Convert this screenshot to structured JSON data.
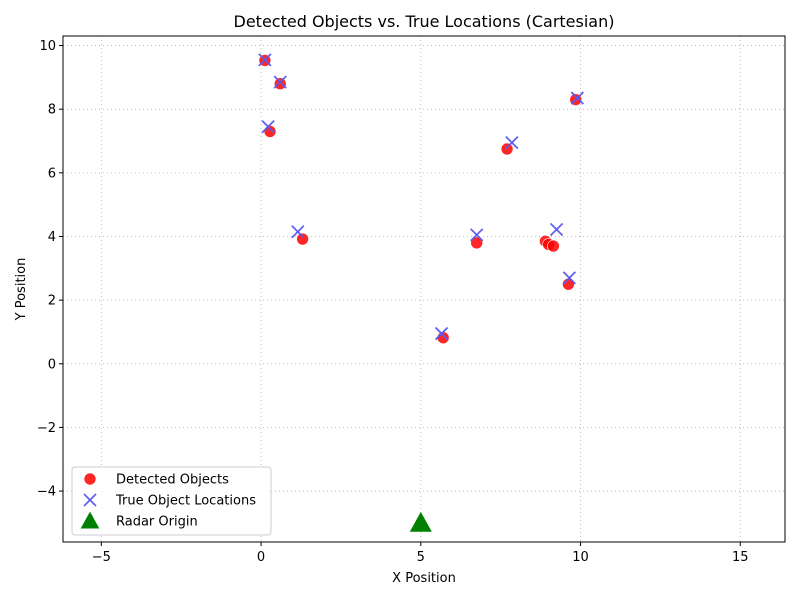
{
  "chart_data": {
    "type": "scatter",
    "title": "Detected Objects vs. True Locations (Cartesian)",
    "xlabel": "X Position",
    "ylabel": "Y Position",
    "xlim": [
      -6.2,
      16.4
    ],
    "ylim": [
      -5.6,
      10.3
    ],
    "xticks": [
      -5,
      0,
      5,
      10,
      15
    ],
    "yticks": [
      -4,
      -2,
      0,
      2,
      4,
      6,
      8,
      10
    ],
    "grid": true,
    "legend_position": "lower-left",
    "series": [
      {
        "name": "Detected Objects",
        "marker": "circle",
        "color": "#ff0000",
        "points": [
          {
            "x": 0.12,
            "y": 9.53
          },
          {
            "x": 0.6,
            "y": 8.8
          },
          {
            "x": 0.28,
            "y": 7.3
          },
          {
            "x": 1.3,
            "y": 3.92
          },
          {
            "x": 5.7,
            "y": 0.82
          },
          {
            "x": 6.75,
            "y": 3.8
          },
          {
            "x": 7.7,
            "y": 6.75
          },
          {
            "x": 8.9,
            "y": 3.85
          },
          {
            "x": 9.0,
            "y": 3.75
          },
          {
            "x": 9.15,
            "y": 3.7
          },
          {
            "x": 9.62,
            "y": 2.5
          },
          {
            "x": 9.85,
            "y": 8.3
          }
        ]
      },
      {
        "name": "True Object Locations",
        "marker": "x",
        "color": "#5a5aee",
        "points": [
          {
            "x": 0.12,
            "y": 9.55
          },
          {
            "x": 0.6,
            "y": 8.85
          },
          {
            "x": 0.22,
            "y": 7.45
          },
          {
            "x": 1.15,
            "y": 4.15
          },
          {
            "x": 5.65,
            "y": 0.95
          },
          {
            "x": 6.75,
            "y": 4.05
          },
          {
            "x": 7.85,
            "y": 6.95
          },
          {
            "x": 9.25,
            "y": 4.22
          },
          {
            "x": 9.65,
            "y": 2.7
          },
          {
            "x": 9.9,
            "y": 8.35
          }
        ]
      },
      {
        "name": "Radar Origin",
        "marker": "triangle",
        "color": "#008000",
        "points": [
          {
            "x": 5.0,
            "y": -5.0
          }
        ]
      }
    ]
  }
}
